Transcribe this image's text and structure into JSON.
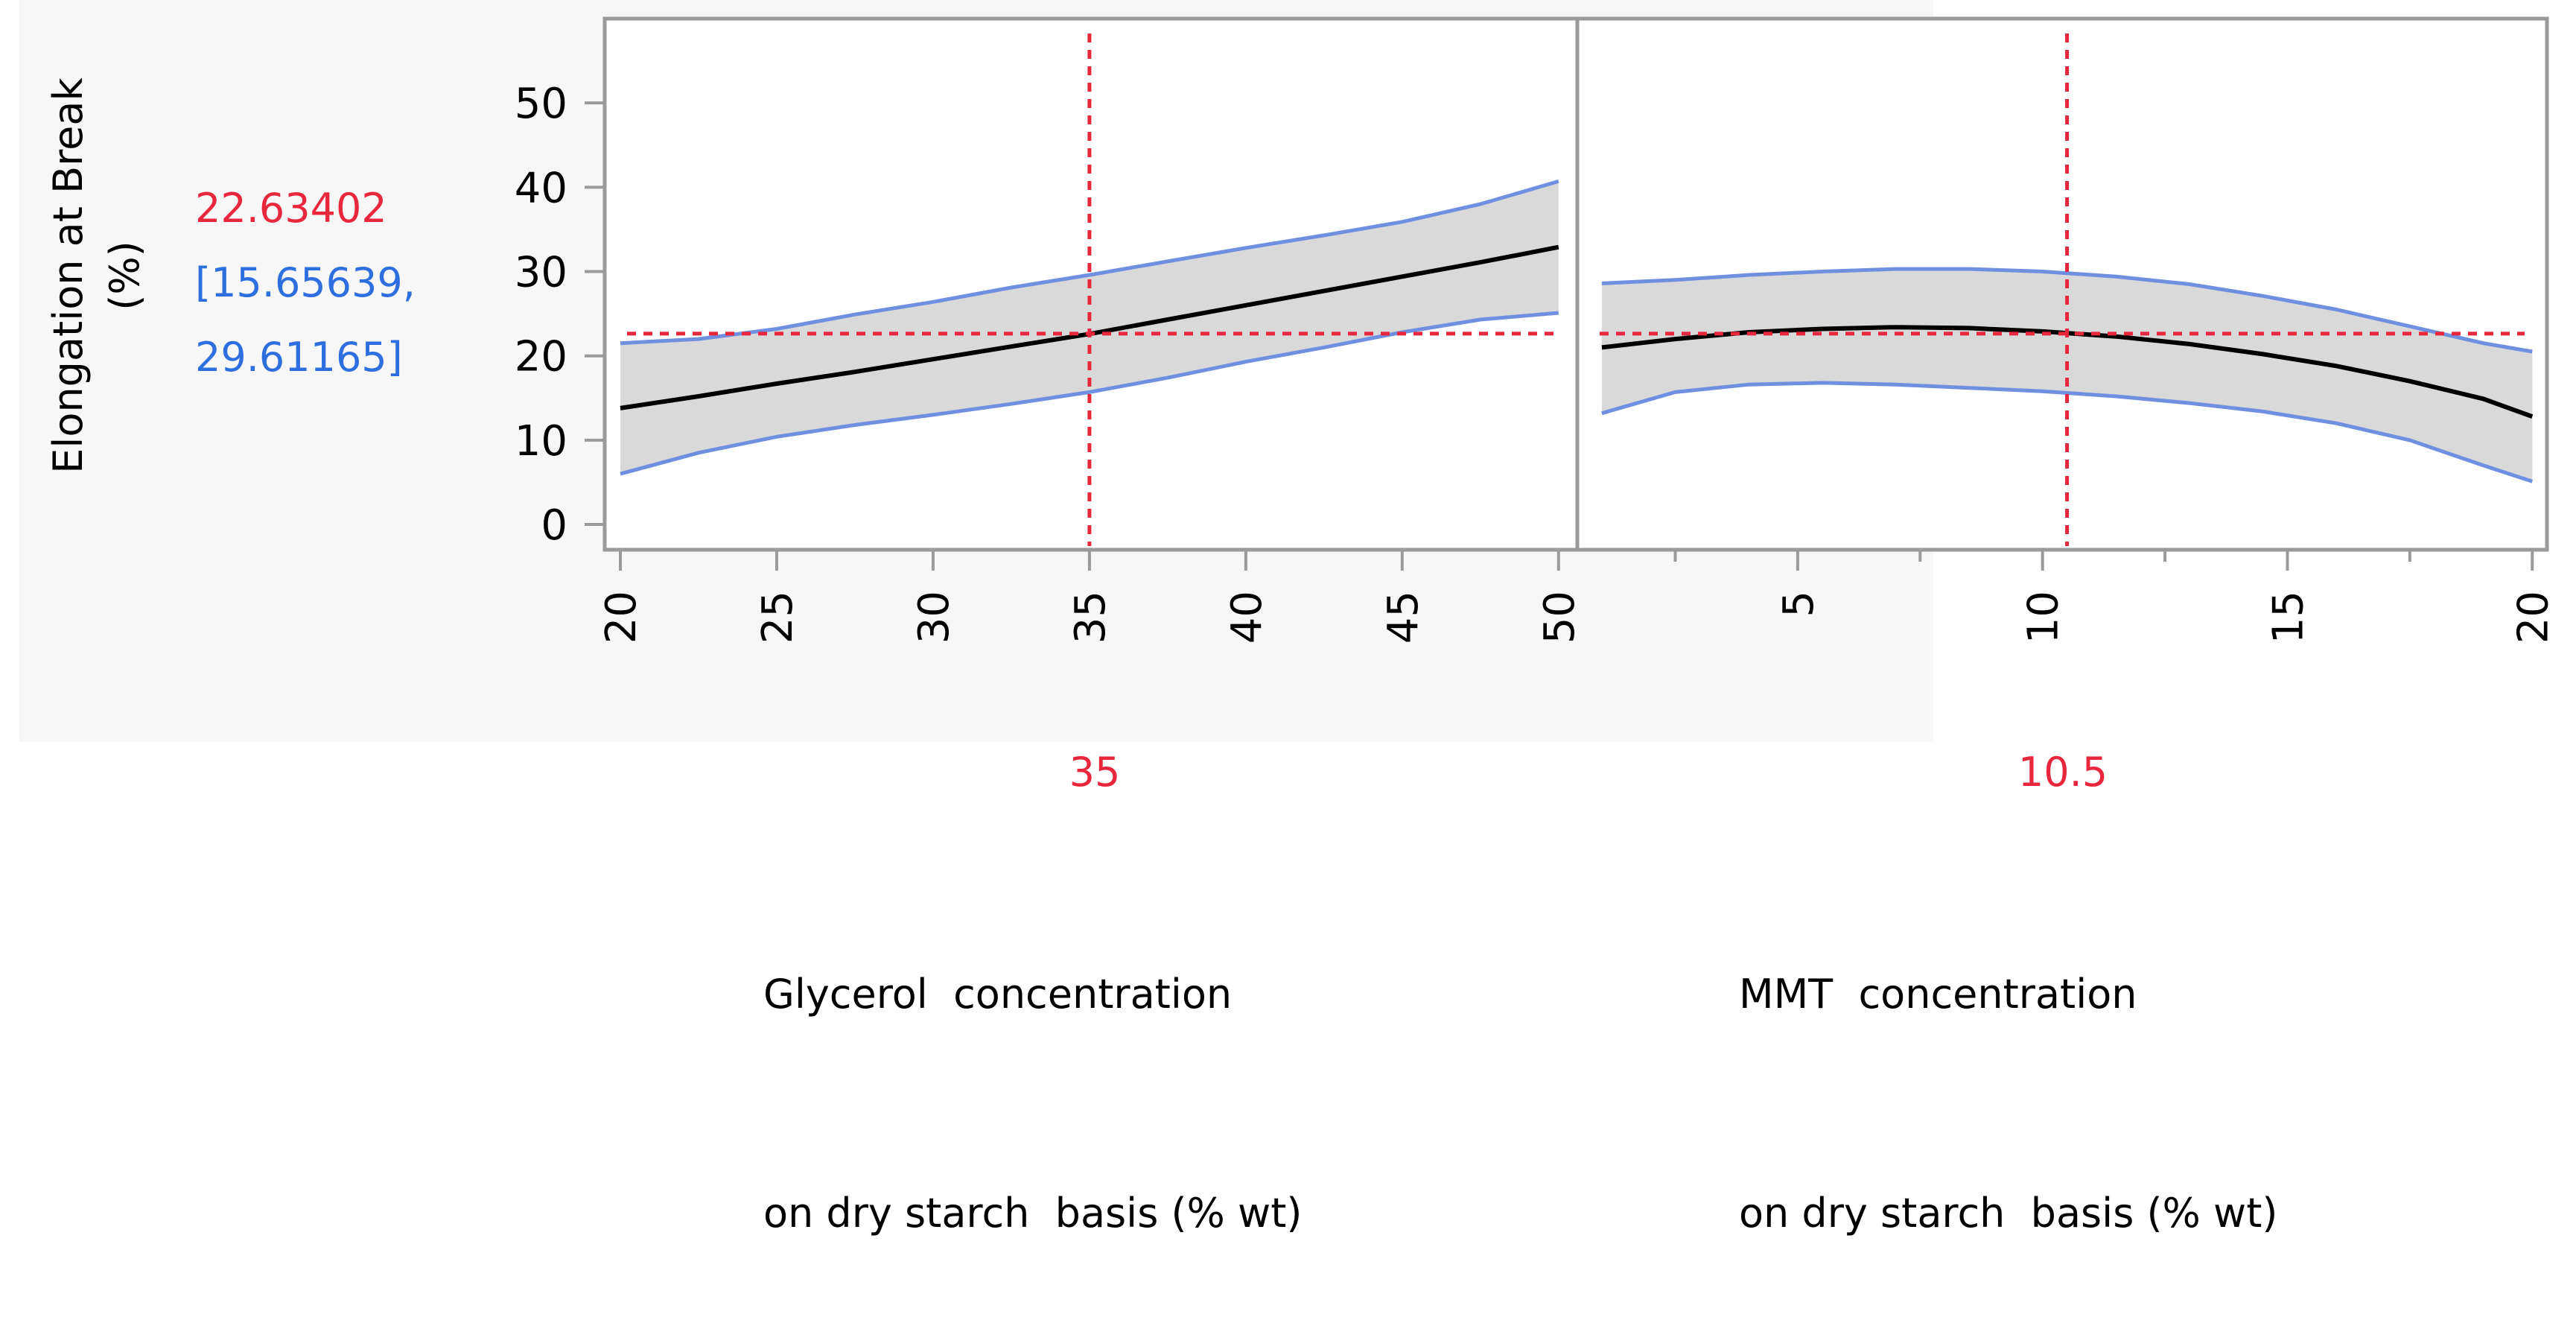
{
  "chart_data": {
    "type": "line",
    "title": "",
    "response": {
      "ylabel_line1": "Elongation at Break",
      "ylabel_line2": "(%)",
      "predicted": "22.63402",
      "ci_low": "[15.65639,",
      "ci_high": "29.61165]",
      "ylim": [
        -3,
        60
      ],
      "yticks": [
        0,
        10,
        20,
        30,
        40,
        50
      ],
      "ytick_labels": [
        "0",
        "10",
        "20",
        "30",
        "40",
        "50"
      ],
      "current_y": 22.63402
    },
    "panels": [
      {
        "name": "glycerol",
        "xlabel_line1": "Glycerol  concentration",
        "xlabel_line2": "on dry starch  basis (% wt)",
        "xlim": [
          19.5,
          50.6
        ],
        "xticks": [
          20,
          25,
          30,
          35,
          40,
          45,
          50
        ],
        "xtick_labels": [
          "20",
          "25",
          "30",
          "35",
          "40",
          "45",
          "50"
        ],
        "minor_ticks": [],
        "current_x": 35,
        "current_label": "35",
        "x": [
          20,
          22.5,
          25,
          27.5,
          30,
          32.5,
          35,
          37.5,
          40,
          42.5,
          45,
          47.5,
          50
        ],
        "mean": [
          13.8,
          15.2,
          16.7,
          18.1,
          19.6,
          21.1,
          22.6,
          24.3,
          26.0,
          27.7,
          29.4,
          31.1,
          32.9
        ],
        "upper": [
          21.5,
          22.0,
          23.2,
          24.9,
          26.4,
          28.1,
          29.6,
          31.2,
          32.8,
          34.3,
          35.9,
          38.0,
          40.7
        ],
        "lower": [
          6.0,
          8.5,
          10.4,
          11.8,
          13.0,
          14.3,
          15.7,
          17.4,
          19.3,
          21.0,
          22.8,
          24.3,
          25.1
        ]
      },
      {
        "name": "mmt",
        "xlabel_line1": "MMT  concentration",
        "xlabel_line2": "on dry starch  basis (% wt)",
        "xlim": [
          0.5,
          20.3
        ],
        "xticks": [
          5,
          10,
          15,
          20
        ],
        "xtick_labels": [
          "5",
          "10",
          "15",
          "20"
        ],
        "minor_ticks": [
          2.5,
          7.5,
          12.5,
          17.5
        ],
        "current_x": 10.5,
        "current_label": "10.5",
        "x": [
          1,
          2.5,
          4,
          5.5,
          7,
          8.5,
          10,
          11.5,
          13,
          14.5,
          16,
          17.5,
          19,
          20
        ],
        "mean": [
          21.0,
          22.0,
          22.8,
          23.2,
          23.4,
          23.3,
          22.9,
          22.3,
          21.4,
          20.2,
          18.8,
          17.0,
          14.9,
          12.8
        ],
        "upper": [
          28.6,
          29.0,
          29.6,
          30.0,
          30.3,
          30.3,
          30.0,
          29.4,
          28.5,
          27.1,
          25.5,
          23.5,
          21.5,
          20.5
        ],
        "lower": [
          13.2,
          15.7,
          16.6,
          16.8,
          16.6,
          16.2,
          15.8,
          15.2,
          14.4,
          13.4,
          12.0,
          10.0,
          7.0,
          5.1
        ]
      }
    ],
    "colors": {
      "mean_line": "#000000",
      "ci_line": "#6f8fe0",
      "ci_fill": "#d9d9d9",
      "crosshair": "#e8273c",
      "frame": "#9a9a9a",
      "predicted_text": "#e8273c",
      "ci_text": "#2e6fe0"
    }
  }
}
